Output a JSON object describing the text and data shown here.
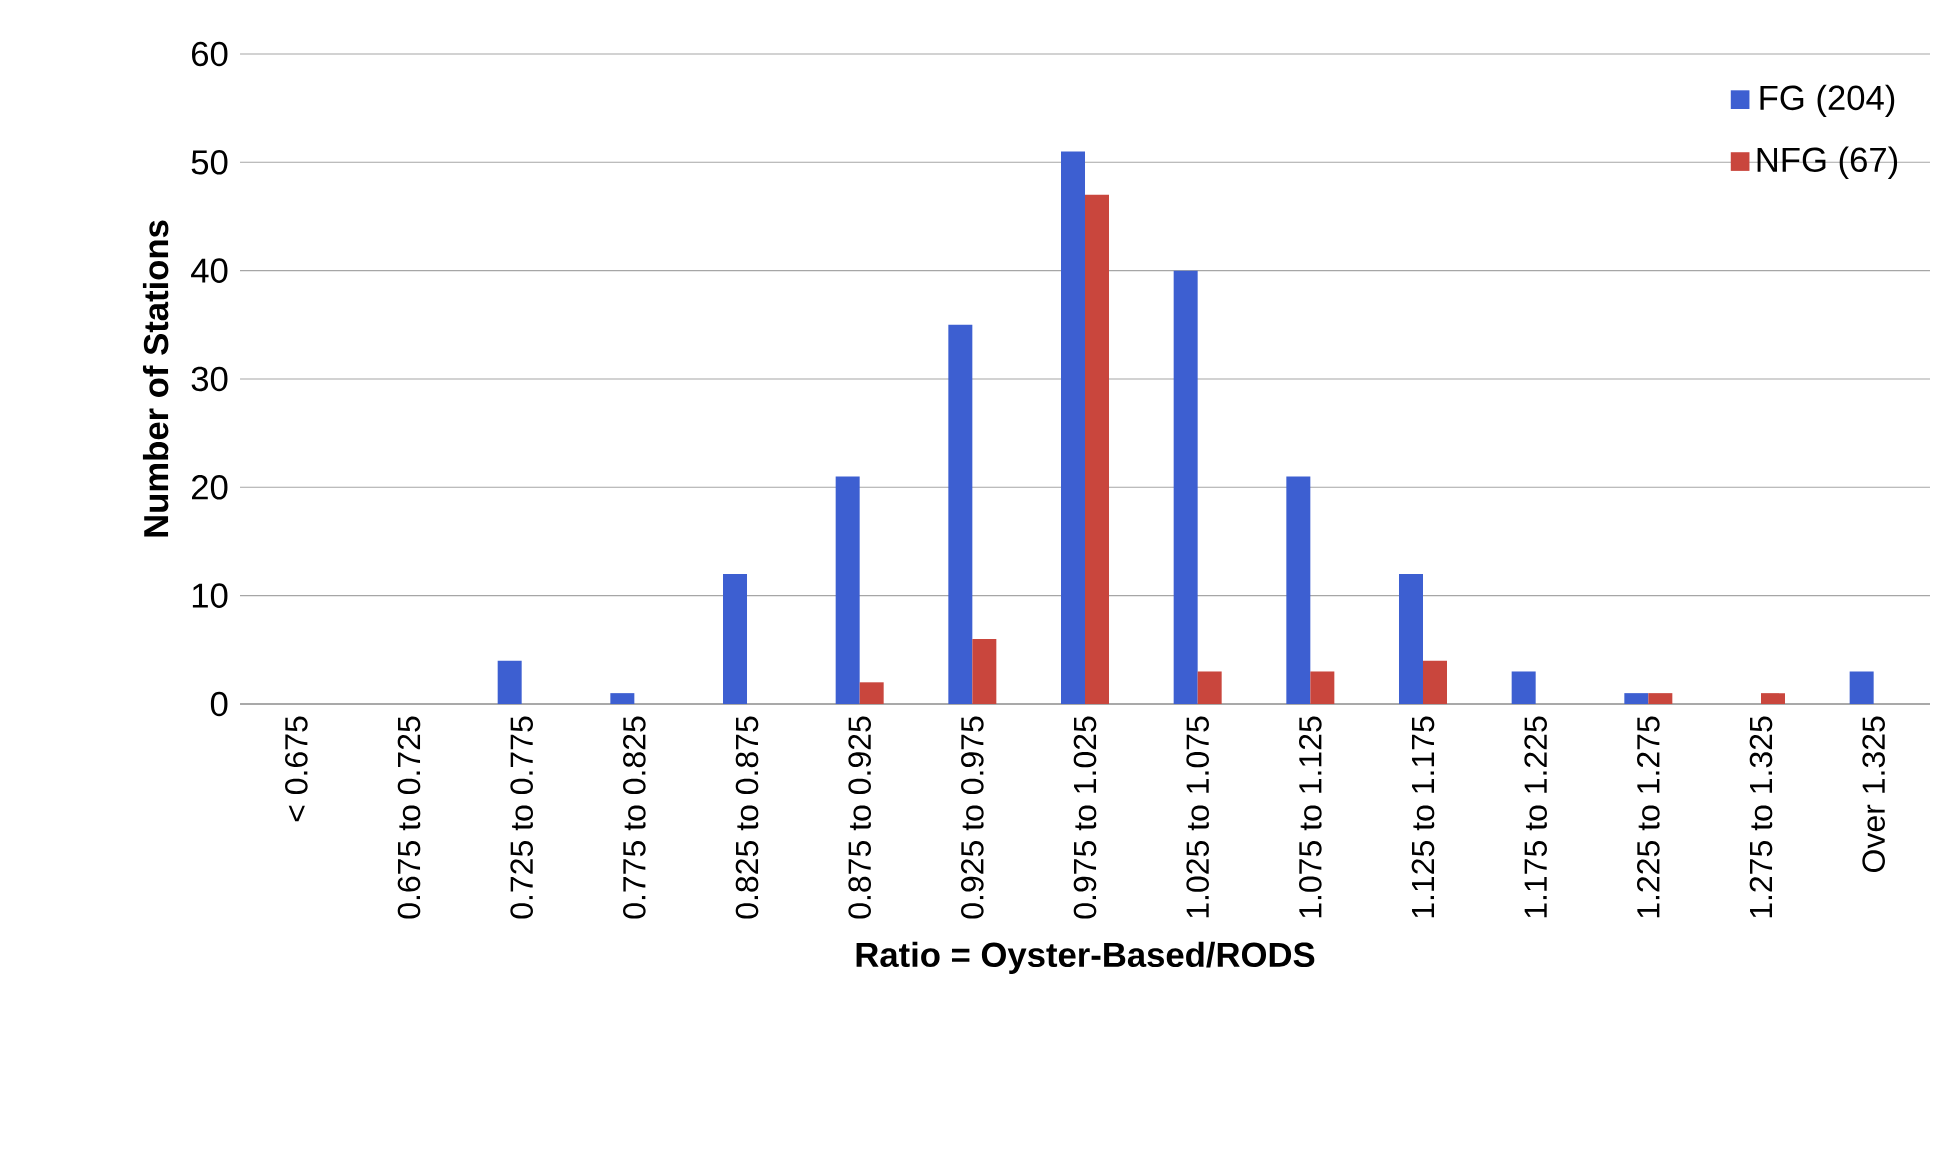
{
  "chart_data": {
    "type": "bar",
    "xlabel": "Ratio = Oyster-Based/RODS",
    "ylabel": "Number of Stations",
    "categories": [
      "< 0.675",
      "0.675 to 0.725",
      "0.725 to 0.775",
      "0.775 to 0.825",
      "0.825 to 0.875",
      "0.875 to 0.925",
      "0.925 to 0.975",
      "0.975 to 1.025",
      "1.025 to 1.075",
      "1.075 to 1.125",
      "1.125 to 1.175",
      "1.175 to 1.225",
      "1.225 to 1.275",
      "1.275 to 1.325",
      "Over 1.325"
    ],
    "series": [
      {
        "name": "FG (204)",
        "color": "#3d5fd1",
        "values": [
          0,
          0,
          4,
          1,
          12,
          21,
          35,
          51,
          40,
          21,
          12,
          3,
          1,
          0,
          3
        ]
      },
      {
        "name": "NFG (67)",
        "color": "#c9463d",
        "values": [
          0,
          0,
          0,
          0,
          0,
          2,
          6,
          47,
          3,
          3,
          4,
          0,
          1,
          1,
          0
        ]
      }
    ],
    "ylim": [
      0,
      60
    ],
    "yticks": [
      0,
      10,
      20,
      30,
      40,
      50,
      60
    ],
    "grid": "y",
    "legend": "top right"
  }
}
